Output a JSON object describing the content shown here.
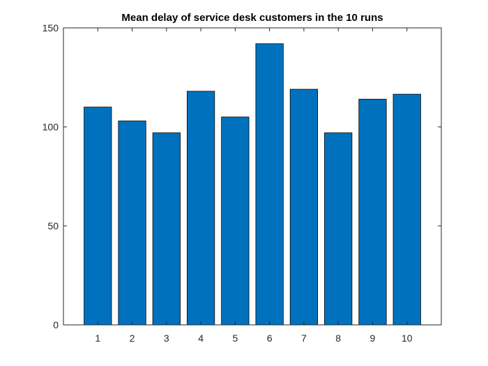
{
  "chart_data": {
    "type": "bar",
    "title": "Mean delay of service desk customers in the 10 runs",
    "xlabel": "",
    "ylabel": "",
    "categories": [
      "1",
      "2",
      "3",
      "4",
      "5",
      "6",
      "7",
      "8",
      "9",
      "10"
    ],
    "values": [
      110,
      103,
      97,
      118,
      105,
      142,
      119,
      97,
      114,
      116.5
    ],
    "ylim": [
      0,
      150
    ],
    "yticks": [
      0,
      50,
      100,
      150
    ],
    "grid": false,
    "legend": "none",
    "bar_color": "#0072BD",
    "bar_edge_color": "#000000"
  }
}
